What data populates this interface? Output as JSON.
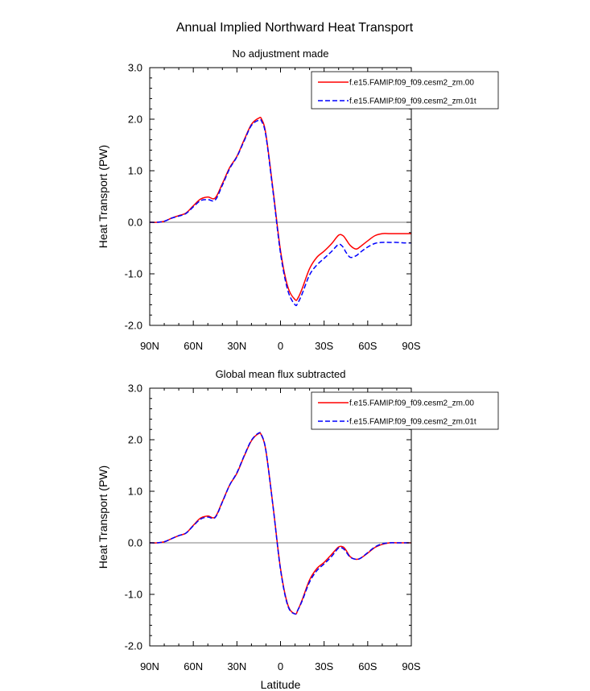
{
  "title": "Annual Implied Northward Heat Transport",
  "chart_data": [
    {
      "type": "line",
      "title": "No adjustment made",
      "xlabel": "",
      "ylabel": "Heat Transport (PW)",
      "xlim": [
        90,
        -90
      ],
      "ylim": [
        -2.0,
        3.0
      ],
      "xticks": [
        90,
        60,
        30,
        0,
        -30,
        -60,
        -90
      ],
      "xtick_labels": [
        "90N",
        "60N",
        "30N",
        "0",
        "30S",
        "60S",
        "90S"
      ],
      "yticks": [
        -2.0,
        -1.0,
        0.0,
        1.0,
        2.0,
        3.0
      ],
      "ytick_labels": [
        "-2.0",
        "-1.0",
        "0.0",
        "1.0",
        "2.0",
        "3.0"
      ],
      "legend_position": "top-right",
      "x": [
        90,
        85,
        80,
        75,
        70,
        65,
        60,
        55,
        50,
        45,
        40,
        35,
        30,
        25,
        20,
        15,
        13,
        10,
        5,
        0,
        -5,
        -10,
        -12,
        -15,
        -20,
        -25,
        -30,
        -35,
        -40,
        -43,
        -45,
        -48,
        -52,
        -55,
        -60,
        -65,
        -70,
        -75,
        -80,
        -85,
        -90
      ],
      "series": [
        {
          "name": "f.e15.FAMIP.f09_f09.cesm2_zm.00",
          "color": "#ff0000",
          "dash": "solid",
          "values": [
            0.0,
            0.0,
            0.02,
            0.08,
            0.13,
            0.18,
            0.32,
            0.45,
            0.49,
            0.47,
            0.75,
            1.06,
            1.28,
            1.6,
            1.9,
            2.02,
            2.0,
            1.7,
            0.6,
            -0.55,
            -1.25,
            -1.5,
            -1.47,
            -1.28,
            -0.9,
            -0.68,
            -0.56,
            -0.42,
            -0.25,
            -0.26,
            -0.33,
            -0.45,
            -0.52,
            -0.47,
            -0.36,
            -0.26,
            -0.22,
            -0.22,
            -0.22,
            -0.22,
            -0.22
          ]
        },
        {
          "name": "f.e15.FAMIP.f09_f09.cesm2_zm.01t",
          "color": "#0000ff",
          "dash": "dashed",
          "values": [
            0.0,
            0.0,
            0.02,
            0.08,
            0.12,
            0.17,
            0.3,
            0.42,
            0.44,
            0.43,
            0.72,
            1.04,
            1.27,
            1.58,
            1.88,
            1.98,
            1.96,
            1.67,
            0.56,
            -0.6,
            -1.32,
            -1.6,
            -1.56,
            -1.38,
            -1.02,
            -0.83,
            -0.7,
            -0.57,
            -0.43,
            -0.48,
            -0.58,
            -0.68,
            -0.65,
            -0.58,
            -0.48,
            -0.41,
            -0.39,
            -0.39,
            -0.39,
            -0.4,
            -0.4
          ]
        }
      ]
    },
    {
      "type": "line",
      "title": "Global mean flux subtracted",
      "xlabel": "Latitude",
      "ylabel": "Heat Transport (PW)",
      "xlim": [
        90,
        -90
      ],
      "ylim": [
        -2.0,
        3.0
      ],
      "xticks": [
        90,
        60,
        30,
        0,
        -30,
        -60,
        -90
      ],
      "xtick_labels": [
        "90N",
        "60N",
        "30N",
        "0",
        "30S",
        "60S",
        "90S"
      ],
      "yticks": [
        -2.0,
        -1.0,
        0.0,
        1.0,
        2.0,
        3.0
      ],
      "ytick_labels": [
        "-2.0",
        "-1.0",
        "0.0",
        "1.0",
        "2.0",
        "3.0"
      ],
      "legend_position": "top-right",
      "x": [
        90,
        85,
        80,
        75,
        70,
        65,
        60,
        55,
        50,
        45,
        40,
        35,
        30,
        25,
        20,
        15,
        13,
        10,
        5,
        0,
        -5,
        -10,
        -12,
        -15,
        -20,
        -25,
        -30,
        -35,
        -40,
        -43,
        -45,
        -48,
        -52,
        -55,
        -60,
        -65,
        -70,
        -75,
        -80,
        -85,
        -90
      ],
      "series": [
        {
          "name": "f.e15.FAMIP.f09_f09.cesm2_zm.00",
          "color": "#ff0000",
          "dash": "solid",
          "values": [
            0.0,
            0.0,
            0.02,
            0.08,
            0.14,
            0.19,
            0.34,
            0.48,
            0.52,
            0.5,
            0.8,
            1.12,
            1.35,
            1.68,
            1.98,
            2.12,
            2.08,
            1.78,
            0.68,
            -0.5,
            -1.2,
            -1.38,
            -1.3,
            -1.1,
            -0.72,
            -0.5,
            -0.38,
            -0.23,
            -0.08,
            -0.08,
            -0.14,
            -0.27,
            -0.32,
            -0.3,
            -0.2,
            -0.09,
            -0.03,
            0.0,
            0.0,
            0.0,
            0.0
          ]
        },
        {
          "name": "f.e15.FAMIP.f09_f09.cesm2_zm.01t",
          "color": "#0000ff",
          "dash": "dashed",
          "values": [
            0.0,
            0.0,
            0.02,
            0.08,
            0.14,
            0.19,
            0.33,
            0.46,
            0.5,
            0.49,
            0.79,
            1.12,
            1.36,
            1.69,
            1.99,
            2.13,
            2.09,
            1.78,
            0.67,
            -0.52,
            -1.22,
            -1.38,
            -1.3,
            -1.12,
            -0.76,
            -0.54,
            -0.41,
            -0.27,
            -0.1,
            -0.11,
            -0.17,
            -0.28,
            -0.32,
            -0.3,
            -0.19,
            -0.08,
            -0.02,
            0.0,
            0.0,
            0.0,
            0.0
          ]
        }
      ]
    }
  ]
}
